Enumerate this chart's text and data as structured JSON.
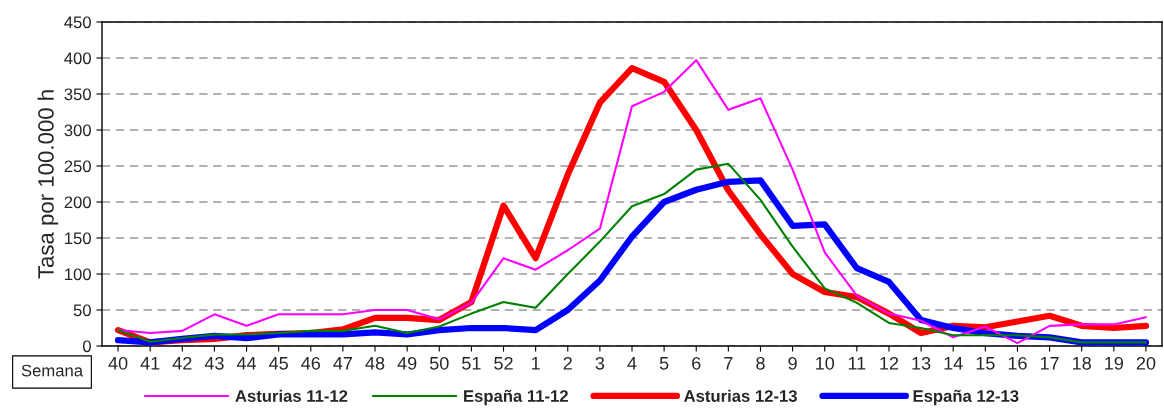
{
  "chart_data": {
    "type": "line",
    "ylabel": "Tasa por 100.000 h",
    "xlabel": "Semana",
    "categories": [
      "40",
      "41",
      "42",
      "43",
      "44",
      "45",
      "46",
      "47",
      "48",
      "49",
      "50",
      "51",
      "52",
      "1",
      "2",
      "3",
      "4",
      "5",
      "6",
      "7",
      "8",
      "9",
      "10",
      "11",
      "12",
      "13",
      "14",
      "15",
      "16",
      "17",
      "18",
      "19",
      "20"
    ],
    "series": [
      {
        "name": "Asturias 11-12",
        "color": "#ff00ff",
        "values": [
          22,
          18,
          21,
          44,
          28,
          44,
          44,
          44,
          50,
          50,
          37,
          60,
          122,
          106,
          133,
          163,
          333,
          353,
          397,
          328,
          344,
          245,
          130,
          70,
          45,
          35,
          12,
          27,
          4,
          28,
          30,
          30,
          40
        ]
      },
      {
        "name": "España 11-12",
        "color": "#008000",
        "values": [
          22,
          6,
          11,
          16,
          16,
          18,
          21,
          21,
          28,
          18,
          27,
          45,
          61,
          53,
          100,
          145,
          194,
          211,
          245,
          253,
          203,
          138,
          80,
          60,
          32,
          25,
          15,
          15,
          15,
          12,
          5,
          5,
          5
        ]
      },
      {
        "name": "Asturias 12-13",
        "color": "#ff0000",
        "values": [
          22,
          5,
          8,
          10,
          15,
          17,
          18,
          23,
          39,
          39,
          36,
          61,
          195,
          122,
          238,
          338,
          386,
          367,
          300,
          216,
          155,
          100,
          75,
          68,
          45,
          18,
          28,
          26,
          34,
          42,
          28,
          25,
          28
        ]
      },
      {
        "name": "España 12-13",
        "color": "#0000ff",
        "values": [
          8,
          5,
          10,
          14,
          11,
          16,
          16,
          16,
          19,
          16,
          22,
          25,
          25,
          22,
          50,
          91,
          152,
          200,
          217,
          228,
          230,
          167,
          169,
          108,
          89,
          36,
          25,
          18,
          14,
          12,
          5,
          5,
          5
        ]
      }
    ],
    "ylim": [
      0,
      450
    ],
    "yticks": [
      0,
      50,
      100,
      150,
      200,
      250,
      300,
      350,
      400,
      450
    ],
    "grid": "y",
    "legend": "bottom",
    "marker": "none",
    "line_style": "solid"
  }
}
